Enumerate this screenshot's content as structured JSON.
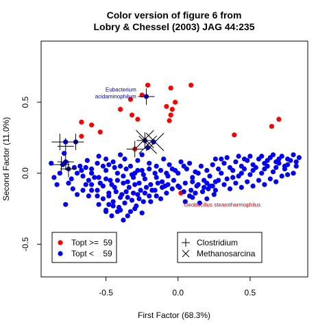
{
  "chart_data": {
    "type": "scatter",
    "title": "Color version of figure 6 from",
    "subtitle": "Lobry & Chessel (2003) JAG 44:235",
    "xlabel": "First Factor (68.3%)",
    "ylabel": "Second Factor (11.0%)",
    "xlim": [
      -0.95,
      0.9
    ],
    "ylim": [
      -0.73,
      0.93
    ],
    "xticks": [
      -0.5,
      0.0,
      0.5
    ],
    "xtick_labels": [
      "-0.5",
      "0.0",
      "0.5"
    ],
    "yticks": [
      -0.5,
      0.0,
      0.5
    ],
    "ytick_labels": [
      "-0.5",
      "0.0",
      "0.5"
    ],
    "grid": false,
    "colors": {
      "high": "#ff0000",
      "low": "#0000ff",
      "axes": "#000000"
    },
    "legend_groups": {
      "position": "bottom-left",
      "entries": [
        {
          "label": "Topt >=  59",
          "color": "#ff0000",
          "marker": "dot"
        },
        {
          "label": "Topt <    59",
          "color": "#0000ff",
          "marker": "dot"
        }
      ]
    },
    "legend_taxa": {
      "position": "bottom-center",
      "entries": [
        {
          "label": "Clostridium",
          "marker": "plus"
        },
        {
          "label": "Methanosarcina",
          "marker": "cross"
        }
      ]
    },
    "annotations": [
      {
        "lines": [
          "Eubacterium",
          "acidaminophilum"
        ],
        "x": -0.29,
        "y": 0.575,
        "color": "#0000aa",
        "anchor": "end"
      },
      {
        "lines": [
          "Geobacillus stearothermophilus"
        ],
        "x": 0.04,
        "y": -0.235,
        "color": "#cc0000",
        "anchor": "start"
      }
    ],
    "series": [
      {
        "name": "Topt >=  59",
        "color": "#ff0000",
        "points": [
          [
            -0.21,
            0.62
          ],
          [
            0.09,
            0.62
          ],
          [
            -0.05,
            0.6
          ],
          [
            -0.25,
            0.55
          ],
          [
            -0.33,
            0.52
          ],
          [
            -0.02,
            0.5
          ],
          [
            -0.08,
            0.47
          ],
          [
            -0.04,
            0.45
          ],
          [
            -0.4,
            0.45
          ],
          [
            -0.32,
            0.41
          ],
          [
            -0.28,
            0.38
          ],
          [
            -0.05,
            0.41
          ],
          [
            -0.06,
            0.37
          ],
          [
            -0.6,
            0.34
          ],
          [
            -0.54,
            0.29
          ],
          [
            -0.67,
            0.36
          ],
          [
            0.39,
            0.27
          ],
          [
            0.65,
            0.33
          ],
          [
            0.7,
            0.38
          ],
          [
            -0.67,
            0.26
          ],
          [
            -0.3,
            0.17
          ],
          [
            0.02,
            -0.14
          ]
        ]
      },
      {
        "name": "Topt <    59",
        "color": "#0000ff",
        "points": [
          [
            -0.22,
            0.54
          ],
          [
            -0.23,
            0.23
          ],
          [
            -0.21,
            0.18
          ],
          [
            -0.17,
            0.22
          ],
          [
            -0.78,
            0.22
          ],
          [
            -0.79,
            0.14
          ],
          [
            -0.71,
            0.22
          ],
          [
            -0.78,
            0.08
          ],
          [
            -0.8,
            0.06
          ],
          [
            -0.76,
            0.03
          ],
          [
            -0.55,
            0.12
          ],
          [
            -0.5,
            0.1
          ],
          [
            -0.45,
            0.08
          ],
          [
            -0.4,
            0.13
          ],
          [
            -0.37,
            0.1
          ],
          [
            -0.33,
            0.05
          ],
          [
            -0.28,
            0.09
          ],
          [
            -0.25,
            0.13
          ],
          [
            -0.2,
            0.07
          ],
          [
            -0.15,
            0.05
          ],
          [
            -0.1,
            0.1
          ],
          [
            -0.06,
            0.06
          ],
          [
            -0.02,
            0.02
          ],
          [
            0.02,
            0.08
          ],
          [
            0.06,
            0.03
          ],
          [
            -0.63,
            0.09
          ],
          [
            -0.68,
            0.05
          ],
          [
            -0.6,
            0.0
          ],
          [
            -0.55,
            -0.03
          ],
          [
            -0.5,
            0.02
          ],
          [
            -0.47,
            -0.05
          ],
          [
            -0.42,
            0.0
          ],
          [
            -0.38,
            -0.02
          ],
          [
            -0.35,
            -0.06
          ],
          [
            -0.31,
            -0.03
          ],
          [
            -0.27,
            -0.07
          ],
          [
            -0.23,
            -0.04
          ],
          [
            -0.19,
            -0.08
          ],
          [
            -0.15,
            -0.03
          ],
          [
            -0.11,
            -0.06
          ],
          [
            -0.07,
            -0.02
          ],
          [
            -0.03,
            -0.05
          ],
          [
            0.01,
            -0.1
          ],
          [
            0.05,
            -0.07
          ],
          [
            0.09,
            -0.12
          ],
          [
            0.13,
            -0.09
          ],
          [
            0.17,
            -0.13
          ],
          [
            0.21,
            -0.11
          ],
          [
            0.25,
            -0.15
          ],
          [
            -0.6,
            -0.08
          ],
          [
            -0.56,
            -0.12
          ],
          [
            -0.52,
            -0.09
          ],
          [
            -0.48,
            -0.14
          ],
          [
            -0.44,
            -0.1
          ],
          [
            -0.4,
            -0.17
          ],
          [
            -0.36,
            -0.13
          ],
          [
            -0.32,
            -0.19
          ],
          [
            -0.28,
            -0.15
          ],
          [
            -0.24,
            -0.2
          ],
          [
            -0.2,
            -0.16
          ],
          [
            -0.16,
            -0.12
          ],
          [
            -0.12,
            -0.18
          ],
          [
            -0.08,
            -0.14
          ],
          [
            0.05,
            -0.2
          ],
          [
            0.1,
            -0.17
          ],
          [
            0.15,
            -0.21
          ],
          [
            0.2,
            -0.18
          ],
          [
            -0.45,
            -0.2
          ],
          [
            -0.41,
            -0.24
          ],
          [
            -0.37,
            -0.21
          ],
          [
            -0.33,
            -0.27
          ],
          [
            -0.29,
            -0.23
          ],
          [
            -0.25,
            -0.28
          ],
          [
            -0.5,
            -0.26
          ],
          [
            -0.46,
            -0.3
          ],
          [
            -0.42,
            -0.27
          ],
          [
            -0.38,
            -0.33
          ],
          [
            -0.55,
            -0.22
          ],
          [
            -0.62,
            -0.16
          ],
          [
            -0.66,
            -0.12
          ],
          [
            -0.7,
            -0.15
          ],
          [
            -0.74,
            -0.04
          ],
          [
            -0.84,
            -0.08
          ],
          [
            -0.88,
            0.07
          ],
          [
            -0.73,
            -0.11
          ],
          [
            -0.78,
            -0.22
          ],
          [
            -0.3,
            0.0
          ],
          [
            -0.25,
            0.02
          ],
          [
            0.1,
            -0.03
          ],
          [
            0.14,
            0.0
          ],
          [
            0.18,
            -0.05
          ],
          [
            0.22,
            -0.02
          ],
          [
            0.26,
            -0.06
          ],
          [
            0.3,
            0.0
          ],
          [
            0.34,
            -0.04
          ],
          [
            0.38,
            0.02
          ],
          [
            0.42,
            -0.02
          ],
          [
            0.46,
            0.03
          ],
          [
            0.5,
            -0.01
          ],
          [
            0.54,
            0.04
          ],
          [
            0.58,
            0.0
          ],
          [
            0.62,
            0.05
          ],
          [
            0.66,
            0.01
          ],
          [
            0.7,
            0.07
          ],
          [
            0.74,
            0.03
          ],
          [
            0.78,
            0.09
          ],
          [
            0.82,
            0.05
          ],
          [
            0.84,
            0.11
          ],
          [
            0.8,
            0.13
          ],
          [
            0.76,
            0.1
          ],
          [
            0.72,
            0.12
          ],
          [
            0.68,
            0.08
          ],
          [
            0.64,
            0.11
          ],
          [
            0.6,
            0.07
          ],
          [
            0.56,
            0.1
          ],
          [
            0.52,
            0.06
          ],
          [
            0.48,
            0.09
          ],
          [
            0.44,
            0.05
          ],
          [
            0.4,
            0.08
          ],
          [
            0.36,
            0.04
          ],
          [
            0.32,
            0.07
          ],
          [
            0.28,
            0.03
          ],
          [
            0.24,
            0.06
          ],
          [
            0.2,
            0.02
          ],
          [
            0.16,
            0.05
          ],
          [
            0.12,
            0.01
          ],
          [
            0.32,
            -0.08
          ],
          [
            0.36,
            -0.11
          ],
          [
            0.4,
            -0.07
          ],
          [
            0.44,
            -0.1
          ],
          [
            0.48,
            -0.06
          ],
          [
            0.52,
            -0.09
          ],
          [
            0.56,
            -0.05
          ],
          [
            0.6,
            -0.08
          ],
          [
            0.64,
            -0.04
          ],
          [
            0.68,
            -0.06
          ],
          [
            0.72,
            -0.02
          ],
          [
            0.76,
            -0.01
          ],
          [
            0.8,
            0.0
          ],
          [
            0.74,
            0.05
          ],
          [
            0.7,
            0.1
          ],
          [
            0.66,
            0.13
          ],
          [
            0.62,
            0.09
          ],
          [
            0.58,
            0.12
          ],
          [
            0.5,
            0.12
          ],
          [
            0.46,
            0.1
          ],
          [
            0.42,
            0.12
          ],
          [
            0.3,
            0.1
          ],
          [
            0.26,
            0.1
          ],
          [
            0.34,
            0.11
          ],
          [
            0.22,
            -0.09
          ],
          [
            0.26,
            -0.12
          ],
          [
            0.18,
            -0.1
          ],
          [
            0.12,
            -0.14
          ],
          [
            0.08,
            -0.16
          ],
          [
            0.04,
            -0.13
          ],
          [
            0.0,
            -0.09
          ],
          [
            -0.04,
            -0.11
          ],
          [
            -0.09,
            -0.09
          ],
          [
            -0.14,
            -0.07
          ],
          [
            -0.18,
            -0.12
          ],
          [
            -0.22,
            -0.1
          ],
          [
            -0.26,
            -0.12
          ],
          [
            -0.3,
            -0.08
          ],
          [
            -0.34,
            -0.1
          ],
          [
            -0.38,
            -0.07
          ],
          [
            -0.42,
            -0.05
          ],
          [
            -0.46,
            -0.08
          ],
          [
            -0.5,
            -0.04
          ],
          [
            -0.54,
            -0.07
          ],
          [
            -0.58,
            -0.03
          ],
          [
            -0.62,
            -0.05
          ],
          [
            -0.66,
            -0.02
          ],
          [
            -0.7,
            0.0
          ],
          [
            -0.72,
            0.04
          ],
          [
            -0.67,
            0.02
          ],
          [
            -0.64,
            0.04
          ],
          [
            -0.35,
            -0.3
          ],
          [
            -0.4,
            -0.26
          ],
          [
            -0.3,
            -0.25
          ],
          [
            -0.45,
            -0.23
          ],
          [
            -0.52,
            -0.18
          ],
          [
            -0.48,
            -0.16
          ],
          [
            -0.43,
            -0.13
          ],
          [
            -0.39,
            -0.15
          ],
          [
            -0.35,
            -0.17
          ],
          [
            -0.31,
            -0.14
          ],
          [
            -0.27,
            -0.18
          ],
          [
            -0.23,
            -0.14
          ],
          [
            -0.19,
            -0.2
          ],
          [
            -0.15,
            -0.16
          ],
          [
            -0.11,
            -0.1
          ],
          [
            -0.07,
            -0.08
          ],
          [
            0.1,
            -0.06
          ],
          [
            0.14,
            -0.08
          ],
          [
            0.2,
            -0.07
          ],
          [
            0.24,
            -0.09
          ],
          [
            0.28,
            -0.05
          ],
          [
            0.0,
            0.0
          ],
          [
            -0.04,
            0.03
          ],
          [
            -0.08,
            0.0
          ],
          [
            -0.12,
            0.02
          ],
          [
            -0.16,
            0.0
          ],
          [
            -0.2,
            0.03
          ],
          [
            0.04,
            0.05
          ],
          [
            0.08,
            0.07
          ],
          [
            -0.24,
            -0.01
          ],
          [
            -0.28,
            0.02
          ],
          [
            -0.32,
            -0.01
          ],
          [
            -0.36,
            0.03
          ],
          [
            -0.4,
            0.05
          ],
          [
            -0.44,
            0.04
          ],
          [
            -0.48,
            0.06
          ],
          [
            -0.52,
            0.05
          ],
          [
            -0.56,
            0.07
          ],
          [
            -0.6,
            0.03
          ],
          [
            0.38,
            -0.03
          ],
          [
            0.44,
            0.0
          ],
          [
            0.52,
            0.02
          ],
          [
            0.6,
            0.03
          ],
          [
            0.68,
            0.04
          ],
          [
            0.76,
            0.06
          ],
          [
            0.82,
            0.08
          ],
          [
            -0.86,
            -0.03
          ],
          [
            -0.82,
            0.0
          ],
          [
            -0.76,
            -0.07
          ],
          [
            -0.5,
            -0.27
          ],
          [
            -0.48,
            -0.22
          ],
          [
            -0.56,
            -0.16
          ],
          [
            -0.6,
            -0.12
          ],
          [
            -0.64,
            -0.08
          ]
        ]
      }
    ],
    "highlight_plus": [
      [
        -0.22,
        0.54
      ],
      [
        -0.82,
        0.22
      ],
      [
        -0.78,
        0.19
      ],
      [
        -0.71,
        0.22
      ],
      [
        -0.81,
        0.06
      ],
      [
        -0.78,
        0.08
      ],
      [
        -0.76,
        0.03
      ],
      [
        -0.3,
        0.17
      ],
      [
        -0.23,
        0.23
      ]
    ],
    "highlight_cross": [
      [
        -0.23,
        0.24
      ],
      [
        -0.21,
        0.2
      ],
      [
        -0.16,
        0.22
      ]
    ]
  }
}
